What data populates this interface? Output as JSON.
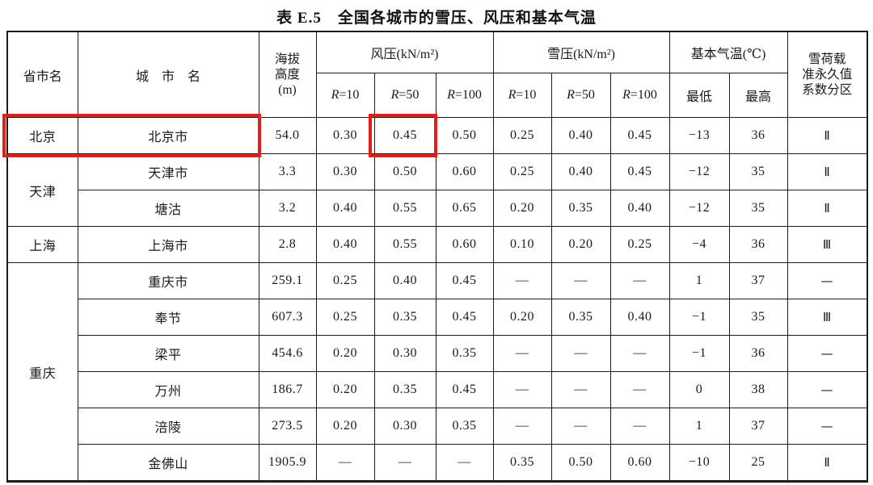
{
  "title": "表 E.5　全国各城市的雪压、风压和基本气温",
  "colors": {
    "highlight_red": "#e81b1b",
    "grid_line": "#1b1b1b",
    "paper": "#ffffff"
  },
  "table": {
    "headers": {
      "province": "省市名",
      "city": "城　市　名",
      "altitude_lines": [
        "海拔",
        "高度",
        "(m)"
      ],
      "wind_group": "风压(kN/m²)",
      "snow_group": "雪压(kN/m²)",
      "temp_group": "基本气温(℃)",
      "zone_lines": [
        "雪荷载",
        "准永久值",
        "系数分区"
      ],
      "wind_r": [
        "R=10",
        "R=50",
        "R=100"
      ],
      "snow_r": [
        "R=10",
        "R=50",
        "R=100"
      ],
      "temp_sub": [
        "最低",
        "最高"
      ]
    },
    "groups": [
      {
        "province": "北京",
        "rows": [
          {
            "city": "北京市",
            "altitude": "54.0",
            "wind": [
              "0.30",
              "0.45",
              "0.50"
            ],
            "snow": [
              "0.25",
              "0.40",
              "0.45"
            ],
            "temp_min": "−13",
            "temp_max": "36",
            "zone": "Ⅱ"
          }
        ]
      },
      {
        "province": "天津",
        "rows": [
          {
            "city": "天津市",
            "altitude": "3.3",
            "wind": [
              "0.30",
              "0.50",
              "0.60"
            ],
            "snow": [
              "0.25",
              "0.40",
              "0.45"
            ],
            "temp_min": "−12",
            "temp_max": "35",
            "zone": "Ⅱ"
          },
          {
            "city": "塘沽",
            "altitude": "3.2",
            "wind": [
              "0.40",
              "0.55",
              "0.65"
            ],
            "snow": [
              "0.20",
              "0.35",
              "0.40"
            ],
            "temp_min": "−12",
            "temp_max": "35",
            "zone": "Ⅱ"
          }
        ]
      },
      {
        "province": "上海",
        "rows": [
          {
            "city": "上海市",
            "altitude": "2.8",
            "wind": [
              "0.40",
              "0.55",
              "0.60"
            ],
            "snow": [
              "0.10",
              "0.20",
              "0.25"
            ],
            "temp_min": "−4",
            "temp_max": "36",
            "zone": "Ⅲ"
          }
        ]
      },
      {
        "province": "重庆",
        "rows": [
          {
            "city": "重庆市",
            "altitude": "259.1",
            "wind": [
              "0.25",
              "0.40",
              "0.45"
            ],
            "snow": [
              "—",
              "—",
              "—"
            ],
            "temp_min": "1",
            "temp_max": "37",
            "zone": "—"
          },
          {
            "city": "奉节",
            "altitude": "607.3",
            "wind": [
              "0.25",
              "0.35",
              "0.45"
            ],
            "snow": [
              "0.20",
              "0.35",
              "0.40"
            ],
            "temp_min": "−1",
            "temp_max": "35",
            "zone": "Ⅲ"
          },
          {
            "city": "梁平",
            "altitude": "454.6",
            "wind": [
              "0.20",
              "0.30",
              "0.35"
            ],
            "snow": [
              "—",
              "—",
              "—"
            ],
            "temp_min": "−1",
            "temp_max": "36",
            "zone": "—"
          },
          {
            "city": "万州",
            "altitude": "186.7",
            "wind": [
              "0.20",
              "0.35",
              "0.45"
            ],
            "snow": [
              "—",
              "—",
              "—"
            ],
            "temp_min": "0",
            "temp_max": "38",
            "zone": "—"
          },
          {
            "city": "涪陵",
            "altitude": "273.5",
            "wind": [
              "0.20",
              "0.30",
              "0.35"
            ],
            "snow": [
              "—",
              "—",
              "—"
            ],
            "temp_min": "1",
            "temp_max": "37",
            "zone": "—"
          },
          {
            "city": "金佛山",
            "altitude": "1905.9",
            "wind": [
              "—",
              "—",
              "—"
            ],
            "snow": [
              "0.35",
              "0.50",
              "0.60"
            ],
            "temp_min": "−10",
            "temp_max": "25",
            "zone": "Ⅱ"
          }
        ]
      }
    ]
  },
  "annotations": {
    "highlighted_row_cells": "北京 / 北京市",
    "highlighted_value": "0.45"
  }
}
